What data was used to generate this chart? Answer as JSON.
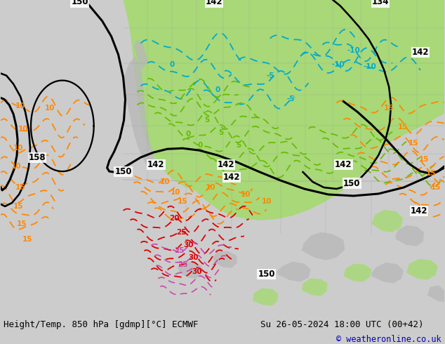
{
  "title_left": "Height/Temp. 850 hPa [gdmp][°C] ECMWF",
  "title_right": "Su 26-05-2024 18:00 UTC (00+42)",
  "copyright": "© weatheronline.co.uk",
  "footer_bg": "#cccccc",
  "map_bg": "#f2f2f2",
  "green_color": "#a8d878",
  "gray_land": "#b8b8b8",
  "ocean_color": "#ffffff",
  "fig_width": 6.34,
  "fig_height": 4.9,
  "dpi": 100,
  "title_fontsize": 9.0,
  "copyright_color": "#0000bb",
  "copyright_fontsize": 8.5,
  "orange": "#ff8800",
  "cyan": "#00aacc",
  "lime": "#66bb00",
  "red": "#dd0000",
  "pink": "#cc44aa",
  "black_contour_lw": 2.2,
  "temp_contour_lw": 1.3
}
